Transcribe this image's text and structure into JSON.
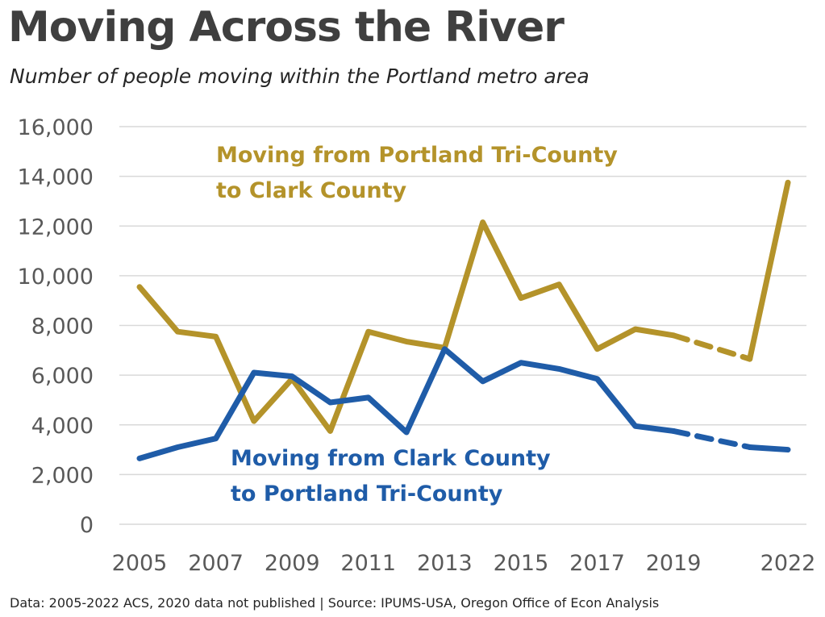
{
  "header": {
    "title": "Moving Across the River",
    "subtitle": "Number of people moving within the Portland metro area"
  },
  "footer": {
    "note": "Data: 2005-2022 ACS, 2020 data not published | Source: IPUMS-USA, Oregon Office of Econ Analysis"
  },
  "colors": {
    "gold": "#B4932A",
    "blue": "#1F5CA8",
    "grid": "#D9D9D9"
  },
  "chart_data": {
    "type": "line",
    "title": "Moving Across the River",
    "subtitle": "Number of people moving within the Portland metro area",
    "xlabel": "",
    "ylabel": "",
    "xlim": [
      2005,
      2022
    ],
    "ylim": [
      0,
      16000
    ],
    "x_tick_labels": [
      "2005",
      "2007",
      "2009",
      "2011",
      "2013",
      "2015",
      "2017",
      "2019",
      "2022"
    ],
    "y_tick_labels": [
      "0",
      "2,000",
      "4,000",
      "6,000",
      "8,000",
      "10,000",
      "12,000",
      "14,000",
      "16,000"
    ],
    "grid": true,
    "series": [
      {
        "label_lines": [
          "Moving from Portland Tri-County",
          "to Clark County"
        ],
        "color": "#B4932A",
        "x": [
          2005,
          2006,
          2007,
          2008,
          2009,
          2010,
          2011,
          2012,
          2013,
          2014,
          2015,
          2016,
          2017,
          2018,
          2019,
          2021,
          2022
        ],
        "values": [
          9550,
          7750,
          7550,
          4150,
          5850,
          3750,
          7750,
          7350,
          7100,
          12150,
          9100,
          9650,
          7050,
          7850,
          7600,
          6650,
          13750
        ],
        "dashed_segment": [
          2019,
          2021
        ]
      },
      {
        "label_lines": [
          "Moving from Clark County",
          "to Portland Tri-County"
        ],
        "color": "#1F5CA8",
        "x": [
          2005,
          2006,
          2007,
          2008,
          2009,
          2010,
          2011,
          2012,
          2013,
          2014,
          2015,
          2016,
          2017,
          2018,
          2019,
          2021,
          2022
        ],
        "values": [
          2650,
          3100,
          3450,
          6100,
          5950,
          4900,
          5100,
          3700,
          7050,
          5750,
          6500,
          6250,
          5850,
          3950,
          3750,
          3100,
          3000
        ],
        "dashed_segment": [
          2019,
          2021
        ]
      }
    ]
  }
}
